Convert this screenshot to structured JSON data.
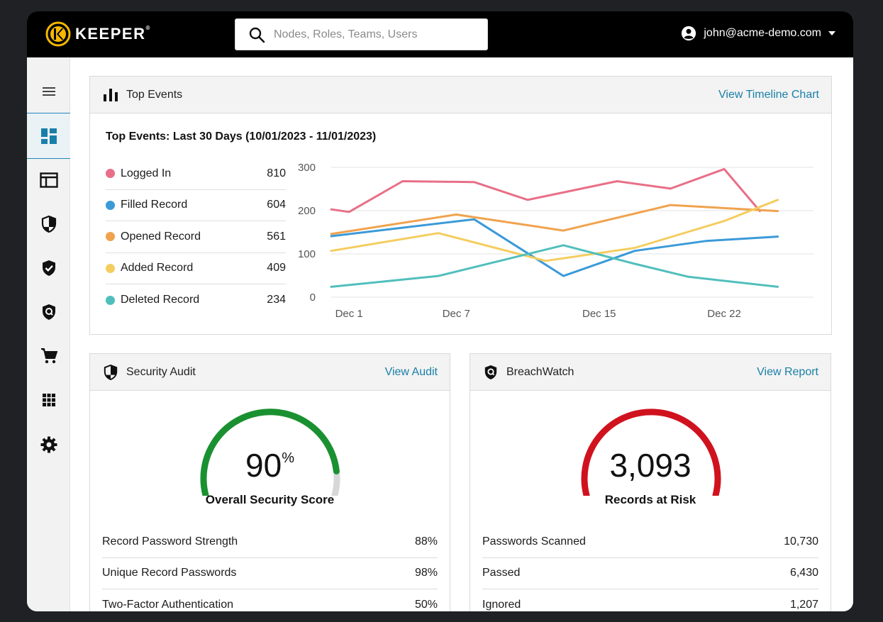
{
  "brand": {
    "name": "KEEPER",
    "mark": "®"
  },
  "search": {
    "placeholder": "Nodes, Roles, Teams, Users"
  },
  "user": {
    "email": "john@acme-demo.com"
  },
  "colors": {
    "accent": "#1a7fa8",
    "gauge_green": "#1a9130",
    "gauge_red": "#d0121f",
    "logo_gold": "#f6b800"
  },
  "sidebar": {
    "items": [
      {
        "name": "menu",
        "icon": "menu-icon"
      },
      {
        "name": "dashboard",
        "icon": "dashboard-icon",
        "active": true
      },
      {
        "name": "admin-console",
        "icon": "browser-window-icon"
      },
      {
        "name": "security-audit",
        "icon": "shield-half-icon"
      },
      {
        "name": "compliance",
        "icon": "shield-check-icon"
      },
      {
        "name": "breachwatch",
        "icon": "breachwatch-icon"
      },
      {
        "name": "store",
        "icon": "cart-icon"
      },
      {
        "name": "integrations",
        "icon": "apps-grid-icon"
      },
      {
        "name": "settings",
        "icon": "gear-icon"
      }
    ]
  },
  "top_events": {
    "title": "Top Events",
    "link": "View Timeline Chart",
    "subtitle": "Top Events: Last 30 Days (10/01/2023 - 11/01/2023)",
    "legend": [
      {
        "label": "Logged In",
        "value": "810",
        "color": "#e86f87"
      },
      {
        "label": "Filled Record",
        "value": "604",
        "color": "#3b9ad8"
      },
      {
        "label": "Opened Record",
        "value": "561",
        "color": "#f0a24e"
      },
      {
        "label": "Added Record",
        "value": "409",
        "color": "#f4cd5f"
      },
      {
        "label": "Deleted Record",
        "value": "234",
        "color": "#50bfbc"
      }
    ]
  },
  "chart_data": {
    "type": "line",
    "x": [
      0,
      1,
      5,
      8,
      11,
      13,
      16,
      19,
      22,
      24,
      25
    ],
    "x_ticks": [
      {
        "label": "Dec 1",
        "x": 1
      },
      {
        "label": "Dec 7",
        "x": 7
      },
      {
        "label": "Dec 15",
        "x": 15
      },
      {
        "label": "Dec 22",
        "x": 22
      }
    ],
    "xlim": [
      0,
      27
    ],
    "ylim": [
      0,
      300
    ],
    "y_ticks": [
      0,
      100,
      200,
      300
    ],
    "grid": true,
    "series": [
      {
        "name": "Logged In",
        "color": "#e86f87",
        "points": [
          [
            0,
            203
          ],
          [
            1,
            197
          ],
          [
            4,
            268
          ],
          [
            8,
            266
          ],
          [
            11,
            225
          ],
          [
            16,
            268
          ],
          [
            19,
            251
          ],
          [
            22,
            296
          ],
          [
            24,
            199
          ]
        ]
      },
      {
        "name": "Filled Record",
        "color": "#3b9ad8",
        "points": [
          [
            0,
            141
          ],
          [
            8,
            180
          ],
          [
            13,
            49
          ],
          [
            17,
            107
          ],
          [
            21,
            130
          ],
          [
            25,
            140
          ]
        ]
      },
      {
        "name": "Opened Record",
        "color": "#f0a24e",
        "points": [
          [
            0,
            146
          ],
          [
            7,
            191
          ],
          [
            13,
            154
          ],
          [
            19,
            213
          ],
          [
            25,
            199
          ]
        ]
      },
      {
        "name": "Added Record",
        "color": "#f4cd5f",
        "points": [
          [
            0,
            107
          ],
          [
            6,
            148
          ],
          [
            12,
            84
          ],
          [
            17,
            114
          ],
          [
            22,
            176
          ],
          [
            25,
            225
          ]
        ]
      },
      {
        "name": "Deleted Record",
        "color": "#50bfbc",
        "points": [
          [
            0,
            24
          ],
          [
            6,
            49
          ],
          [
            13,
            120
          ],
          [
            17,
            77
          ],
          [
            20,
            47
          ],
          [
            25,
            24
          ]
        ]
      }
    ]
  },
  "security_audit": {
    "title": "Security Audit",
    "link": "View Audit",
    "score": "90",
    "score_value": 90,
    "score_unit": "%",
    "score_label": "Overall Security Score",
    "stats": [
      {
        "label": "Record Password Strength",
        "value": "88%"
      },
      {
        "label": "Unique Record Passwords",
        "value": "98%"
      },
      {
        "label": "Two-Factor Authentication",
        "value": "50%"
      }
    ]
  },
  "breachwatch": {
    "title": "BreachWatch",
    "link": "View Report",
    "count": "3,093",
    "count_label": "Records at Risk",
    "stats": [
      {
        "label": "Passwords Scanned",
        "value": "10,730"
      },
      {
        "label": "Passed",
        "value": "6,430"
      },
      {
        "label": "Ignored",
        "value": "1,207"
      }
    ]
  }
}
